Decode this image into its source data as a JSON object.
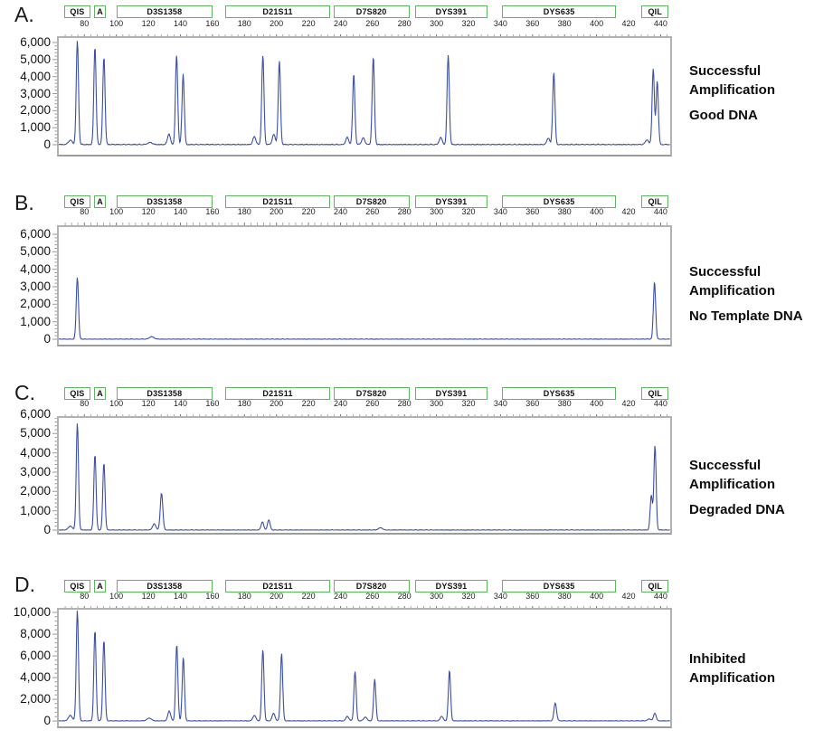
{
  "figure": {
    "background": "#ffffff",
    "trace_color": "#3b4fa7",
    "marker_box_border": "#5cb85c",
    "plot_border_color": "#b2b2b2",
    "tick_color_minor": "#aaaaaa",
    "tick_color_major": "#777777",
    "text_color": "#1a1a1a",
    "x_domain": [
      64,
      446
    ],
    "x_minor_step": 4,
    "x_major_ticks": [
      80,
      100,
      120,
      140,
      160,
      180,
      200,
      220,
      240,
      260,
      280,
      300,
      320,
      340,
      360,
      380,
      400,
      420,
      440
    ],
    "markers": [
      {
        "label": "QIS",
        "start": 67.5,
        "end": 82.5
      },
      {
        "label": "A",
        "start": 86,
        "end": 92.5
      },
      {
        "label": "D3S1358",
        "start": 100,
        "end": 159
      },
      {
        "label": "D21S11",
        "start": 168,
        "end": 232.5
      },
      {
        "label": "D7S820",
        "start": 235.5,
        "end": 282
      },
      {
        "label": "DYS391",
        "start": 286.5,
        "end": 331
      },
      {
        "label": "DYS635",
        "start": 341,
        "end": 411
      },
      {
        "label": "QIL",
        "start": 428,
        "end": 444
      }
    ]
  },
  "chart_data": [
    {
      "type": "line",
      "panel": "A.",
      "description": "electropherogram",
      "ylim": [
        0,
        6000
      ],
      "y_major_step": 1000,
      "y_minor_step": 200,
      "y_tick_labels": [
        "0",
        "1,000",
        "2,000",
        "3,000",
        "4,000",
        "5,000",
        "6,000"
      ],
      "annotation": {
        "lines": [
          "Successful",
          "Amplification"
        ],
        "sub": "Good DNA"
      },
      "noise_amplitude": 45,
      "peaks": [
        [
          71.2,
          260,
          1.2
        ],
        [
          75.6,
          6080
        ],
        [
          86.6,
          5750
        ],
        [
          92.2,
          5150
        ],
        [
          121,
          120,
          1.4
        ],
        [
          132.8,
          620,
          0.9
        ],
        [
          137.6,
          5250
        ],
        [
          141.7,
          4150
        ],
        [
          186.2,
          470,
          0.9
        ],
        [
          191.5,
          5250
        ],
        [
          198.3,
          600,
          0.9
        ],
        [
          201.8,
          4900
        ],
        [
          244.2,
          420,
          0.9
        ],
        [
          248.3,
          4150
        ],
        [
          254.2,
          380,
          1.0
        ],
        [
          260.5,
          5150
        ],
        [
          302.6,
          420,
          0.9
        ],
        [
          307.3,
          5250
        ],
        [
          369.8,
          380,
          0.9
        ],
        [
          373.3,
          4250
        ],
        [
          431.5,
          280,
          1.0
        ],
        [
          435.4,
          4450
        ],
        [
          437.9,
          3750
        ]
      ]
    },
    {
      "type": "line",
      "panel": "B.",
      "description": "electropherogram",
      "ylim": [
        0,
        6000
      ],
      "y_major_step": 1000,
      "y_minor_step": 200,
      "y_tick_labels": [
        "0",
        "1,000",
        "2,000",
        "3,000",
        "4,000",
        "5,000",
        "6,000"
      ],
      "annotation": {
        "lines": [
          "Successful",
          "Amplification"
        ],
        "sub": "No Template DNA"
      },
      "noise_amplitude": 26,
      "peaks": [
        [
          75.6,
          3520
        ],
        [
          122,
          140,
          1.4
        ],
        [
          436.2,
          3280
        ]
      ]
    },
    {
      "type": "line",
      "panel": "C.",
      "description": "electropherogram",
      "ylim": [
        0,
        6000
      ],
      "y_major_step": 1000,
      "y_minor_step": 200,
      "y_tick_labels": [
        "0",
        "1,000",
        "2,000",
        "3,000",
        "4,000",
        "5,000",
        "6,000"
      ],
      "annotation": {
        "lines": [
          "Successful",
          "Amplification"
        ],
        "sub": "Degraded DNA"
      },
      "noise_amplitude": 22,
      "peaks": [
        [
          71.2,
          200,
          1.2
        ],
        [
          75.6,
          5520
        ],
        [
          86.6,
          3920
        ],
        [
          92.2,
          3480
        ],
        [
          123.6,
          320,
          1.0
        ],
        [
          128.2,
          1900,
          0.8
        ],
        [
          191.2,
          420,
          0.8
        ],
        [
          195.2,
          520,
          0.8
        ],
        [
          265,
          120,
          1.2
        ],
        [
          434.2,
          1800,
          0.7
        ],
        [
          436.5,
          4380
        ]
      ]
    },
    {
      "type": "line",
      "panel": "D.",
      "description": "electropherogram",
      "ylim": [
        0,
        10000
      ],
      "y_major_step": 2000,
      "y_minor_step": 400,
      "y_tick_labels": [
        "0",
        "2,000",
        "4,000",
        "6,000",
        "8,000",
        "10,000"
      ],
      "annotation": {
        "lines": [
          "Inhibited",
          "Amplification"
        ],
        "sub": ""
      },
      "noise_amplitude": 40,
      "peaks": [
        [
          71.2,
          500,
          1.2
        ],
        [
          75.6,
          10150
        ],
        [
          86.6,
          8350
        ],
        [
          92.2,
          7450
        ],
        [
          120.5,
          250,
          1.4
        ],
        [
          133,
          900,
          0.9
        ],
        [
          137.7,
          7050
        ],
        [
          141.8,
          5850
        ],
        [
          186.2,
          520,
          0.9
        ],
        [
          191.5,
          6550
        ],
        [
          198.2,
          700,
          0.9
        ],
        [
          203.2,
          6250
        ],
        [
          244.3,
          420,
          0.9
        ],
        [
          249.1,
          4550
        ],
        [
          255.5,
          350,
          1.0
        ],
        [
          261.4,
          3850
        ],
        [
          303.2,
          420,
          0.9
        ],
        [
          308.1,
          4650
        ],
        [
          374.2,
          1650,
          0.8
        ],
        [
          433,
          180,
          1.0
        ],
        [
          436.4,
          720,
          0.8
        ]
      ]
    }
  ]
}
